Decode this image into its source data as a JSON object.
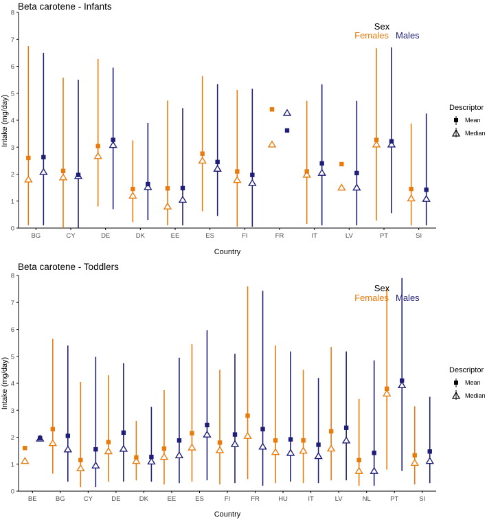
{
  "colors": {
    "females": "#E87B0C",
    "males": "#1E1E78",
    "axis": "#000000",
    "tick_text": "#4d4d4d"
  },
  "legend": {
    "descriptor_title": "Descriptor",
    "mean_label": "Mean",
    "median_label": "Median",
    "sex_title": "Sex",
    "females_label": "Females",
    "males_label": "Males"
  },
  "chart_data": [
    {
      "type": "scatter",
      "title": "Beta carotene - Infants",
      "xlabel": "Country",
      "ylabel": "Intake (mg/day)",
      "ylim": [
        0,
        8
      ],
      "yticks": [
        "0",
        "1",
        "2",
        "3",
        "4",
        "5",
        "6",
        "7",
        "8"
      ],
      "grid": false,
      "legend_position": "right",
      "categories": [
        "BG",
        "CY",
        "DE",
        "DK",
        "EE",
        "ES",
        "FI",
        "FR",
        "IT",
        "LV",
        "PT",
        "SI"
      ],
      "series": [
        {
          "name": "Females",
          "mean": [
            2.6,
            2.12,
            3.04,
            1.45,
            1.47,
            2.76,
            2.1,
            4.4,
            2.1,
            2.37,
            3.27,
            1.45
          ],
          "median": [
            1.8,
            1.88,
            2.67,
            1.2,
            0.8,
            2.5,
            1.78,
            3.1,
            1.98,
            1.5,
            3.1,
            1.1
          ],
          "low": [
            0.1,
            0.0,
            0.8,
            0.22,
            0.1,
            0.62,
            0.05,
            null,
            0.15,
            null,
            0.28,
            0.1
          ],
          "high": [
            6.75,
            5.58,
            6.27,
            3.25,
            4.73,
            5.64,
            5.12,
            null,
            4.72,
            null,
            6.67,
            3.88
          ]
        },
        {
          "name": "Males",
          "mean": [
            2.63,
            1.97,
            3.27,
            1.63,
            1.48,
            2.45,
            1.97,
            3.62,
            2.4,
            2.04,
            3.22,
            1.42
          ],
          "median": [
            2.08,
            1.93,
            3.08,
            1.52,
            1.05,
            2.2,
            1.67,
            4.27,
            2.05,
            1.5,
            3.1,
            1.08
          ],
          "low": [
            0.1,
            0.0,
            0.7,
            0.3,
            0.1,
            0.45,
            0.05,
            null,
            0.1,
            0.1,
            0.55,
            0.1
          ],
          "high": [
            6.5,
            5.5,
            5.95,
            3.9,
            4.45,
            5.34,
            5.17,
            null,
            5.33,
            4.72,
            6.7,
            4.25
          ]
        }
      ]
    },
    {
      "type": "scatter",
      "title": "Beta carotene - Toddlers",
      "xlabel": "Country",
      "ylabel": "Intake (mg/day)",
      "ylim": [
        0,
        8
      ],
      "yticks": [
        "0",
        "1",
        "2",
        "3",
        "4",
        "5",
        "6",
        "7",
        "8"
      ],
      "grid": false,
      "legend_position": "right",
      "categories": [
        "BE",
        "BG",
        "CY",
        "DE",
        "DK",
        "EE",
        "ES",
        "FI",
        "FR",
        "HU",
        "IT",
        "LV",
        "NL",
        "PT",
        "SI"
      ],
      "series": [
        {
          "name": "Females",
          "mean": [
            1.6,
            2.3,
            1.15,
            1.82,
            1.25,
            1.58,
            2.15,
            1.8,
            2.8,
            1.88,
            1.88,
            2.22,
            1.15,
            3.8,
            1.33
          ],
          "median": [
            1.12,
            1.78,
            0.85,
            1.48,
            1.12,
            1.27,
            1.62,
            1.52,
            2.05,
            1.45,
            1.5,
            1.58,
            0.75,
            3.62,
            1.05
          ],
          "low": [
            null,
            0.65,
            0.15,
            0.35,
            0.4,
            0.25,
            0.35,
            0.25,
            0.45,
            0.3,
            0.3,
            0.4,
            0.2,
            0.8,
            0.25
          ],
          "high": [
            null,
            5.65,
            4.05,
            4.3,
            2.6,
            3.75,
            5.45,
            4.5,
            7.6,
            5.4,
            4.5,
            5.35,
            3.42,
            7.55,
            3.15
          ]
        },
        {
          "name": "Males",
          "mean": [
            1.97,
            2.05,
            1.55,
            2.17,
            1.27,
            1.88,
            2.45,
            2.1,
            2.3,
            1.92,
            1.72,
            2.35,
            1.42,
            4.1,
            1.47
          ],
          "median": [
            1.95,
            1.55,
            0.95,
            1.57,
            1.1,
            1.33,
            2.1,
            1.75,
            1.65,
            1.42,
            1.3,
            1.88,
            0.75,
            3.93,
            1.12
          ],
          "low": [
            null,
            0.35,
            0.15,
            0.35,
            0.35,
            0.3,
            0.4,
            0.3,
            0.2,
            0.35,
            0.3,
            0.4,
            0.2,
            0.75,
            0.3
          ],
          "high": [
            null,
            5.4,
            4.98,
            4.75,
            3.13,
            4.95,
            5.97,
            5.1,
            7.43,
            5.18,
            4.2,
            5.18,
            4.85,
            7.9,
            3.5
          ]
        }
      ]
    }
  ]
}
